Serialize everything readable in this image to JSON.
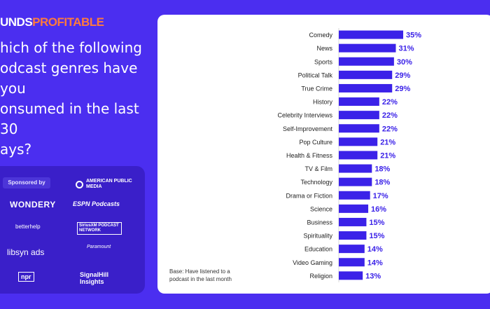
{
  "brand": {
    "word1": "UNDS",
    "word2": "PROFITABLE"
  },
  "question": "hich of the following odcast genres have you onsumed in the last 30 ays?",
  "question_lines": [
    "hich of the following",
    "odcast genres have you",
    "onsumed in the last 30",
    "ays?"
  ],
  "sponsors": {
    "label": "Sponsored by",
    "logos": [
      "AMERICAN PUBLIC MEDIA",
      "WONDERY",
      "ESPN Podcasts",
      "betterhelp",
      "SiriusXM PODCAST NETWORK",
      "libsyn ads",
      "Paramount",
      "npr",
      "SignalHill Insights"
    ]
  },
  "base_note": "Base: Have listened to a podcast in the last month",
  "colors": {
    "background": "#4b2ef0",
    "bar": "#3b22e8",
    "label": "#3b22e8",
    "card": "#ffffff"
  },
  "chart_data": {
    "type": "bar",
    "orientation": "horizontal",
    "categories": [
      "Comedy",
      "News",
      "Sports",
      "Political Talk",
      "True Crime",
      "History",
      "Celebrity Interviews",
      "Self-Improvement",
      "Pop Culture",
      "Health & Fitness",
      "TV & Film",
      "Technology",
      "Drama or Fiction",
      "Science",
      "Business",
      "Spirituality",
      "Education",
      "Video Gaming",
      "Religion"
    ],
    "values": [
      35,
      31,
      30,
      29,
      29,
      22,
      22,
      22,
      21,
      21,
      18,
      18,
      17,
      16,
      15,
      15,
      14,
      14,
      13
    ],
    "value_labels": [
      "35%",
      "31%",
      "30%",
      "29%",
      "29%",
      "22%",
      "22%",
      "22%",
      "21%",
      "21%",
      "18%",
      "18%",
      "17%",
      "16%",
      "15%",
      "15%",
      "14%",
      "14%",
      "13%"
    ],
    "xlim": [
      0,
      35
    ],
    "grid": false
  }
}
